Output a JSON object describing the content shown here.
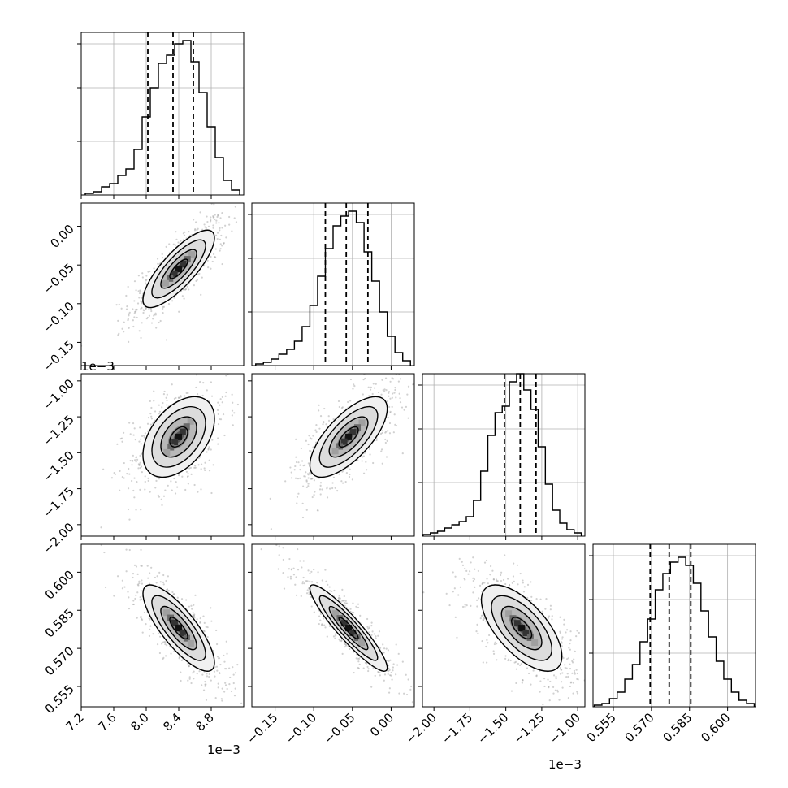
{
  "offsets": {
    "row1_y": "1e−3",
    "bottom_x1": "1e−3",
    "bottom_x3": "1e−3"
  },
  "chart_data": {
    "type": "corner",
    "parameters": [
      {
        "ticks": [
          7.2,
          7.6,
          8.0,
          8.4,
          8.8
        ],
        "tick_labels": [
          "7.2",
          "7.6",
          "8.0",
          "8.4",
          "8.8"
        ],
        "range": [
          7.2,
          9.2
        ],
        "scale_label": "1e−3",
        "quantiles": [
          8.02,
          8.33,
          8.58
        ],
        "hist_x": [
          7.3,
          7.4,
          7.5,
          7.6,
          7.7,
          7.8,
          7.9,
          8.0,
          8.1,
          8.2,
          8.3,
          8.4,
          8.5,
          8.6,
          8.7,
          8.8,
          8.9,
          9.0,
          9.1
        ],
        "hist_y": [
          0.01,
          0.02,
          0.05,
          0.07,
          0.12,
          0.16,
          0.28,
          0.48,
          0.66,
          0.81,
          0.86,
          0.93,
          0.95,
          0.82,
          0.63,
          0.42,
          0.23,
          0.09,
          0.03
        ],
        "hist_ticks": [
          0.5,
          0.8
        ]
      },
      {
        "ticks": [
          -0.15,
          -0.1,
          -0.05,
          0.0
        ],
        "tick_labels": [
          "−0.15",
          "−0.10",
          "−0.05",
          "0.00"
        ],
        "range": [
          -0.18,
          0.03
        ],
        "quantiles": [
          -0.085,
          -0.058,
          -0.03
        ],
        "hist_x": [
          -0.17,
          -0.16,
          -0.15,
          -0.14,
          -0.13,
          -0.12,
          -0.11,
          -0.1,
          -0.09,
          -0.08,
          -0.07,
          -0.06,
          -0.05,
          -0.04,
          -0.03,
          -0.02,
          -0.01,
          0.0,
          0.01,
          0.02
        ],
        "hist_y": [
          0.01,
          0.02,
          0.04,
          0.07,
          0.1,
          0.15,
          0.24,
          0.37,
          0.55,
          0.72,
          0.86,
          0.92,
          0.95,
          0.88,
          0.7,
          0.52,
          0.33,
          0.18,
          0.08,
          0.03
        ],
        "hist_ticks": [
          0.5,
          0.8
        ]
      },
      {
        "ticks": [
          -2.0,
          -1.75,
          -1.5,
          -1.25,
          -1.0
        ],
        "tick_labels": [
          "−2.00",
          "−1.75",
          "−1.50",
          "−1.25",
          "−1.00"
        ],
        "y_tick_labels": [
          "−2.00",
          "−1.75",
          "−1.50",
          "−1.25",
          "−1.00"
        ],
        "range": [
          -2.08,
          -0.95
        ],
        "scale_label": "1e−3",
        "quantiles": [
          -1.51,
          -1.4,
          -1.29
        ],
        "hist_x": [
          -2.05,
          -2.0,
          -1.95,
          -1.9,
          -1.85,
          -1.8,
          -1.75,
          -1.7,
          -1.65,
          -1.6,
          -1.55,
          -1.5,
          -1.45,
          -1.4,
          -1.35,
          -1.3,
          -1.25,
          -1.2,
          -1.15,
          -1.1,
          -1.05,
          -1.0
        ],
        "hist_y": [
          0.01,
          0.02,
          0.03,
          0.05,
          0.07,
          0.09,
          0.12,
          0.22,
          0.4,
          0.62,
          0.76,
          0.8,
          0.95,
          1.0,
          0.9,
          0.78,
          0.55,
          0.32,
          0.16,
          0.08,
          0.04,
          0.02
        ],
        "hist_ticks": [
          0.5,
          0.8
        ]
      },
      {
        "ticks": [
          0.555,
          0.57,
          0.585,
          0.6
        ],
        "tick_labels": [
          "0.555",
          "0.570",
          "0.585",
          "0.600"
        ],
        "range": [
          0.547,
          0.611
        ],
        "quantiles": [
          0.5695,
          0.577,
          0.5855
        ],
        "hist_x": [
          0.549,
          0.552,
          0.555,
          0.558,
          0.561,
          0.564,
          0.567,
          0.57,
          0.573,
          0.576,
          0.579,
          0.582,
          0.585,
          0.588,
          0.591,
          0.594,
          0.597,
          0.6,
          0.603,
          0.606,
          0.609
        ],
        "hist_y": [
          0.01,
          0.02,
          0.05,
          0.09,
          0.17,
          0.26,
          0.4,
          0.54,
          0.72,
          0.82,
          0.89,
          0.92,
          0.87,
          0.76,
          0.59,
          0.43,
          0.28,
          0.17,
          0.09,
          0.04,
          0.02
        ],
        "hist_ticks": [
          0.5,
          0.8
        ]
      }
    ],
    "pairs": [
      {
        "i": 1,
        "j": 0,
        "corr": 0.8,
        "mean": [
          8.4,
          -0.055
        ],
        "sd": [
          0.22,
          0.025
        ]
      },
      {
        "i": 2,
        "j": 0,
        "corr": 0.45,
        "mean": [
          8.4,
          -1.39
        ],
        "sd": [
          0.22,
          0.14
        ]
      },
      {
        "i": 2,
        "j": 1,
        "corr": 0.7,
        "mean": [
          -0.055,
          -1.39
        ],
        "sd": [
          0.025,
          0.14
        ]
      },
      {
        "i": 3,
        "j": 0,
        "corr": -0.8,
        "mean": [
          8.4,
          0.578
        ],
        "sd": [
          0.22,
          0.0085
        ]
      },
      {
        "i": 3,
        "j": 1,
        "corr": -0.92,
        "mean": [
          -0.055,
          0.578
        ],
        "sd": [
          0.025,
          0.0085
        ]
      },
      {
        "i": 3,
        "j": 2,
        "corr": -0.65,
        "mean": [
          -1.39,
          0.578
        ],
        "sd": [
          0.14,
          0.0085
        ]
      }
    ],
    "contour_levels": [
      0.5,
      1.0,
      1.5,
      2.0
    ],
    "grid": true
  }
}
